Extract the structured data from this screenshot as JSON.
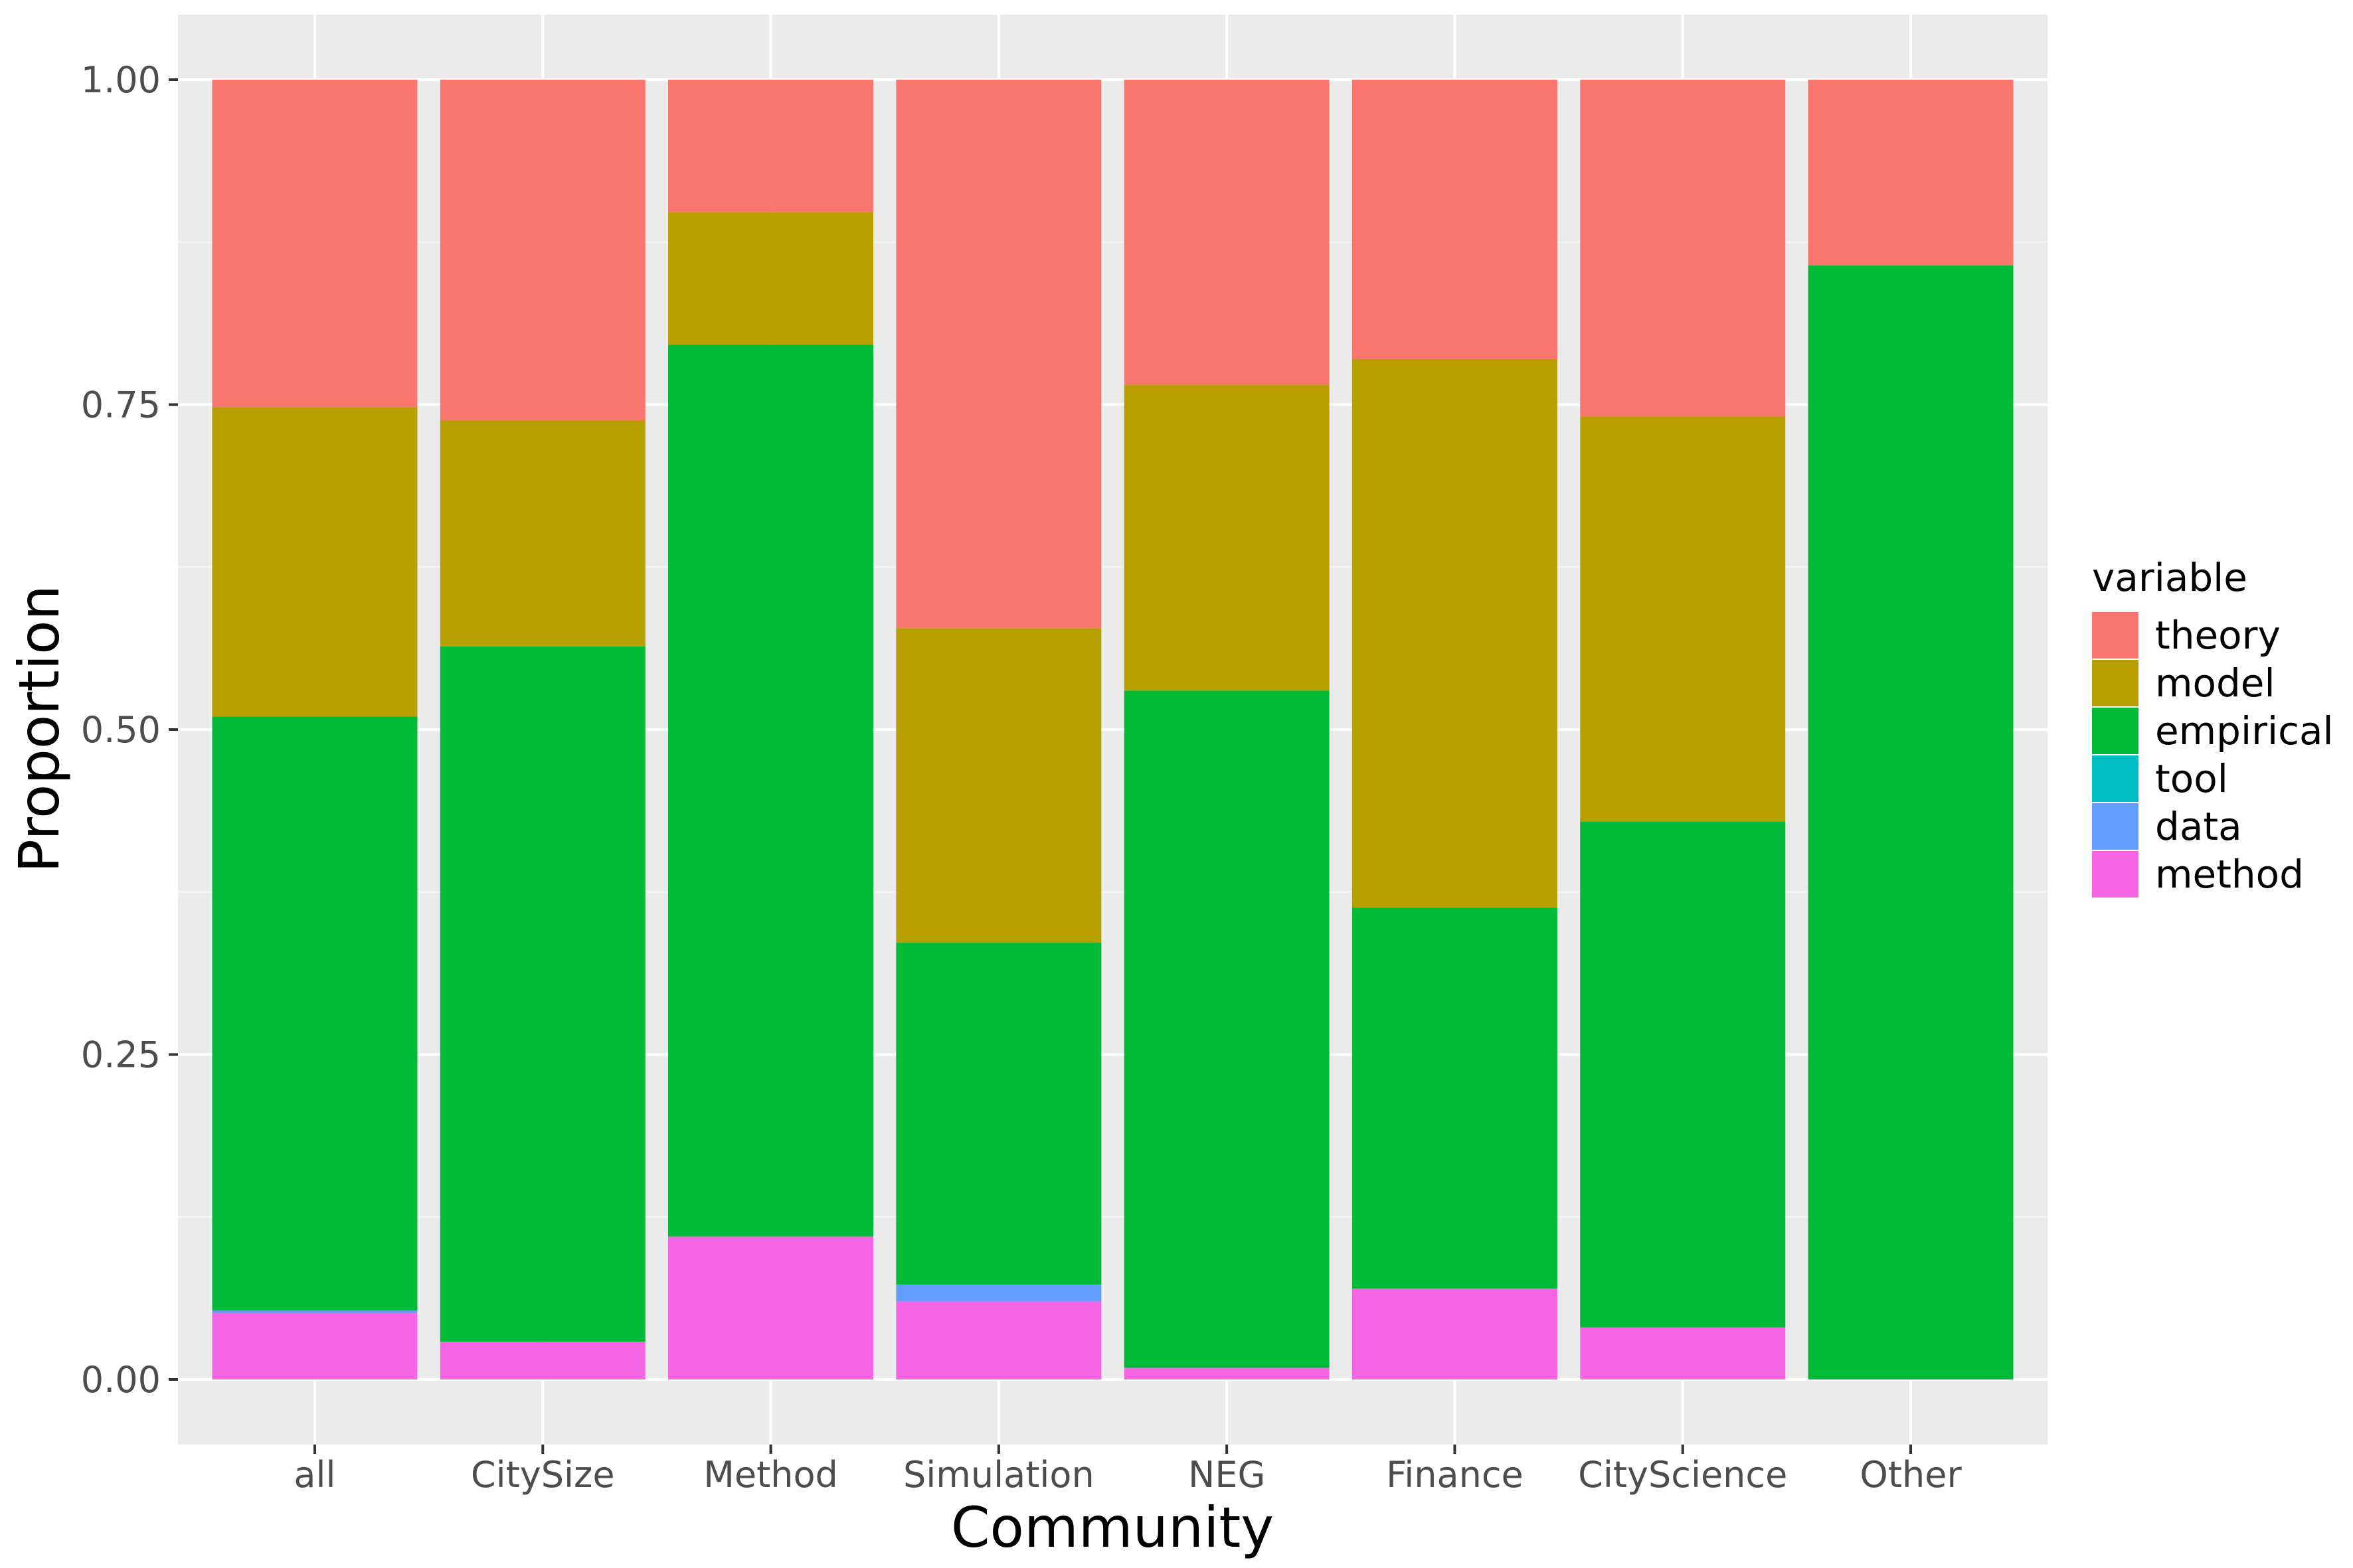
{
  "chart_data": {
    "type": "bar",
    "stacked": true,
    "xlabel": "Community",
    "ylabel": "Proportion",
    "ylim": [
      0,
      1
    ],
    "yticks": [
      "0.00",
      "0.25",
      "0.50",
      "0.75",
      "1.00"
    ],
    "grid": true,
    "legend_position": "right",
    "legend_title": "variable",
    "categories": [
      "all",
      "CitySize",
      "Method",
      "Simulation",
      "NEG",
      "Finance",
      "CityScience",
      "Other"
    ],
    "series": [
      {
        "name": "theory",
        "color": "#F8766D",
        "values": [
          0.252,
          0.262,
          0.102,
          0.422,
          0.235,
          0.215,
          0.259,
          0.143
        ]
      },
      {
        "name": "model",
        "color": "#B79F00",
        "values": [
          0.238,
          0.174,
          0.102,
          0.242,
          0.235,
          0.422,
          0.312,
          0.0
        ]
      },
      {
        "name": "empirical",
        "color": "#00BA38",
        "values": [
          0.457,
          0.535,
          0.686,
          0.263,
          0.521,
          0.293,
          0.389,
          0.857
        ]
      },
      {
        "name": "tool",
        "color": "#00BFC4",
        "values": [
          0.0,
          0.0,
          0.0,
          0.0,
          0.0,
          0.0,
          0.0,
          0.0
        ]
      },
      {
        "name": "data",
        "color": "#619CFF",
        "values": [
          0.002,
          0.0,
          0.0,
          0.013,
          0.0,
          0.0,
          0.0,
          0.0
        ]
      },
      {
        "name": "method",
        "color": "#F564E3",
        "values": [
          0.051,
          0.029,
          0.11,
          0.06,
          0.009,
          0.07,
          0.04,
          0.0
        ]
      }
    ],
    "colors": {
      "panel_background": "#EBEBEB",
      "grid_major": "#FFFFFF",
      "grid_minor": "#F5F5F5",
      "tick_text": "#4D4D4D"
    }
  }
}
